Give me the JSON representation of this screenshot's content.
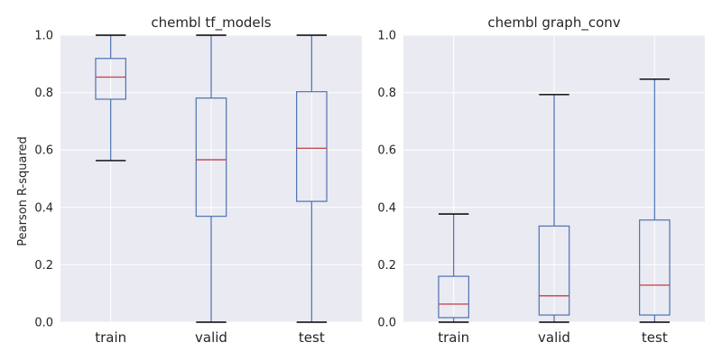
{
  "ylabel": "Pearson R-squared",
  "colors": {
    "panel_bg": "#EAEAF2",
    "grid": "#FFFFFF",
    "box": "#4C72B0",
    "median": "#C44E52",
    "whisker_cap": "#000000"
  },
  "chart_data": [
    {
      "type": "box",
      "title": "chembl tf_models",
      "categories": [
        "train",
        "valid",
        "test"
      ],
      "ylim": [
        0.0,
        1.0
      ],
      "yticks": [
        "0.0",
        "0.2",
        "0.4",
        "0.6",
        "0.8",
        "1.0"
      ],
      "boxes": [
        {
          "name": "train",
          "whislo": 0.563,
          "q1": 0.777,
          "med": 0.854,
          "q3": 0.919,
          "whishi": 1.0
        },
        {
          "name": "valid",
          "whislo": 0.0,
          "q1": 0.369,
          "med": 0.566,
          "q3": 0.781,
          "whishi": 1.0
        },
        {
          "name": "test",
          "whislo": 0.0,
          "q1": 0.421,
          "med": 0.606,
          "q3": 0.803,
          "whishi": 1.0
        }
      ]
    },
    {
      "type": "box",
      "title": "chembl graph_conv",
      "categories": [
        "train",
        "valid",
        "test"
      ],
      "ylim": [
        0.0,
        1.0
      ],
      "yticks": [
        "0.0",
        "0.2",
        "0.4",
        "0.6",
        "0.8",
        "1.0"
      ],
      "boxes": [
        {
          "name": "train",
          "whislo": 0.0,
          "q1": 0.016,
          "med": 0.063,
          "q3": 0.16,
          "whishi": 0.377
        },
        {
          "name": "valid",
          "whislo": 0.0,
          "q1": 0.025,
          "med": 0.092,
          "q3": 0.335,
          "whishi": 0.793
        },
        {
          "name": "test",
          "whislo": 0.0,
          "q1": 0.025,
          "med": 0.129,
          "q3": 0.356,
          "whishi": 0.847
        }
      ]
    }
  ]
}
